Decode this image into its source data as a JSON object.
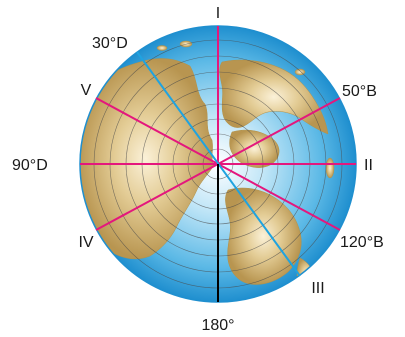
{
  "labels": {
    "top": "I",
    "bottom": "180°",
    "right": "II",
    "left": "90°D",
    "upper_left_inner": "30°D",
    "upper_left_outer": "V",
    "upper_right": "50°B",
    "lower_left": "IV",
    "lower_right_outer": "III",
    "lower_right_inner": "120°B"
  },
  "colors": {
    "meridian_magenta": "#e4177d",
    "meridian_blue": "#1fa3e0",
    "meridian_black": "#000000",
    "ocean": "#3aa6dd",
    "land": "#c8a965",
    "parallels": "#4a4a4a"
  }
}
